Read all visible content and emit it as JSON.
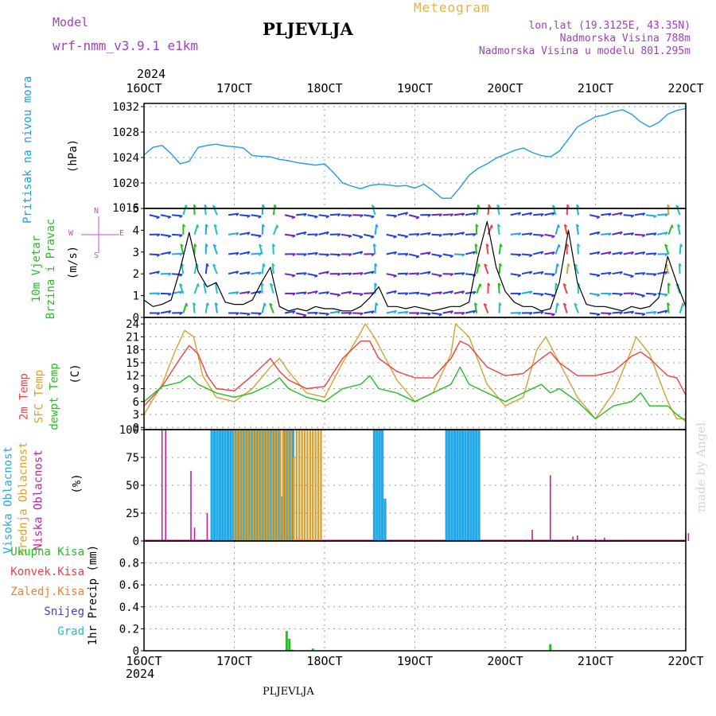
{
  "header": {
    "model_label": "Model",
    "model_name": "wrf-nmm_v3.9.1 e1km",
    "station": "PLJEVLJA",
    "chart_title": "Meteogram",
    "coords": "lon,lat (19.3125E, 43.35N)",
    "elevation": "Nadmorska Visina 788m",
    "model_elevation": "Nadmorska Visina u modelu 801.295m",
    "year_top": "2024",
    "year_bottom": "2024",
    "footer_station": "PLJEVLJA",
    "credit": "made by Angel"
  },
  "colors": {
    "pressure": "#1e9be8",
    "temp2m": "#f04040",
    "sfc": "#d8a030",
    "dew": "#20c020",
    "high_cloud": "#20a8e8",
    "mid_cloud": "#d8a030",
    "low_cloud": "#c020a0",
    "precip_total": "#20c020",
    "precip_conv": "#f04040",
    "precip_frz": "#f08030",
    "precip_snow": "#4040e0",
    "precip_grad": "#20c0c0",
    "wind_label": "#20c020",
    "compass": "#c050d0",
    "credit": "#d0d8d0"
  },
  "chart_data": [
    {
      "panel": "pressure",
      "type": "line",
      "title": "Pritisak na nivou mora",
      "ylabel": "(hPa)",
      "ylim": [
        1016,
        1032.5
      ],
      "yticks": [
        1020,
        1024,
        1028,
        1032
      ],
      "ytick_top_clipped": "1016",
      "grid": true,
      "x_labels": [
        "16OCT",
        "17OCT",
        "18OCT",
        "19OCT",
        "20OCT",
        "21OCT",
        "22OCT"
      ],
      "series": [
        {
          "x": [
            0,
            0.1,
            0.2,
            0.3,
            0.4,
            0.5,
            0.6,
            0.7,
            0.8,
            0.9,
            1,
            1.1,
            1.2,
            1.3,
            1.4,
            1.5,
            1.6,
            1.7,
            1.8,
            1.9,
            2,
            2.1,
            2.2,
            2.3,
            2.4,
            2.5,
            2.6,
            2.7,
            2.8,
            2.9,
            3,
            3.1,
            3.2,
            3.3,
            3.4,
            3.5,
            3.6,
            3.7,
            3.8,
            3.9,
            4,
            4.1,
            4.2,
            4.3,
            4.4,
            4.5,
            4.6,
            4.7,
            4.8,
            4.9,
            5,
            5.1,
            5.2,
            5.3,
            5.4,
            5.5,
            5.6,
            5.7,
            5.8,
            5.9,
            6
          ],
          "y": [
            1024.4,
            1025.6,
            1025.9,
            1024.6,
            1023,
            1023.4,
            1025.6,
            1025.9,
            1026.1,
            1025.8,
            1025.7,
            1025.5,
            1024.3,
            1024.2,
            1024.1,
            1023.7,
            1023.5,
            1023.2,
            1023,
            1022.8,
            1023,
            1021.6,
            1020,
            1019.5,
            1019.1,
            1019.6,
            1019.8,
            1019.7,
            1019.5,
            1019.6,
            1019.2,
            1019.8,
            1018.8,
            1017.6,
            1017.6,
            1019.3,
            1021.2,
            1022.3,
            1023,
            1023.9,
            1024.5,
            1025.1,
            1025.5,
            1024.8,
            1024.3,
            1024.1,
            1025,
            1026.9,
            1028.8,
            1029.6,
            1030.4,
            1030.7,
            1031.2,
            1031.5,
            1030.8,
            1029.6,
            1028.8,
            1029.5,
            1030.8,
            1031.4,
            1031.7
          ]
        }
      ]
    },
    {
      "panel": "wind",
      "type": "line",
      "title": "10m Vjetar Brzina i Pravac",
      "ylabel": "(m/s)",
      "ylim": [
        0,
        5
      ],
      "yticks": [
        0,
        1,
        2,
        3,
        4,
        5
      ],
      "compass": {
        "n": "N",
        "s": "S",
        "e": "E",
        "w": "W"
      },
      "series": [
        {
          "name": "Brzina",
          "x": [
            0,
            0.1,
            0.2,
            0.3,
            0.4,
            0.5,
            0.6,
            0.7,
            0.8,
            0.9,
            1,
            1.1,
            1.2,
            1.3,
            1.4,
            1.5,
            1.6,
            1.7,
            1.8,
            1.9,
            2,
            2.1,
            2.2,
            2.3,
            2.4,
            2.5,
            2.6,
            2.7,
            2.8,
            2.9,
            3,
            3.1,
            3.2,
            3.3,
            3.4,
            3.5,
            3.6,
            3.7,
            3.8,
            3.9,
            4,
            4.1,
            4.2,
            4.3,
            4.4,
            4.5,
            4.6,
            4.7,
            4.8,
            4.9,
            5,
            5.1,
            5.2,
            5.3,
            5.4,
            5.5,
            5.6,
            5.7,
            5.8,
            5.9,
            6
          ],
          "y": [
            0.8,
            0.5,
            0.6,
            0.8,
            2.2,
            3.9,
            2.1,
            1.4,
            1.6,
            0.7,
            0.6,
            0.6,
            0.8,
            1.6,
            2.3,
            0.5,
            0.3,
            0.4,
            0.3,
            0.5,
            0.4,
            0.4,
            0.3,
            0.3,
            0.5,
            0.9,
            1.4,
            0.5,
            0.5,
            0.4,
            0.5,
            0.4,
            0.3,
            0.4,
            0.5,
            0.5,
            0.7,
            2.8,
            4.4,
            2.3,
            1.2,
            0.7,
            0.5,
            0.5,
            0.3,
            0.4,
            1.6,
            4.0,
            1.6,
            0.6,
            0.5,
            0.5,
            0.4,
            0.3,
            0.5,
            0.4,
            0.5,
            0.9,
            2.8,
            1.6,
            0.5
          ]
        }
      ]
    },
    {
      "panel": "temperature",
      "type": "line",
      "ylabel": "(C)",
      "ylim": [
        -0.5,
        25.5
      ],
      "yticks": [
        0,
        3,
        6,
        9,
        12,
        15,
        18,
        21,
        24
      ],
      "grid": true,
      "series": [
        {
          "name": "2m Temp",
          "x": [
            0,
            0.2,
            0.4,
            0.5,
            0.6,
            0.7,
            0.8,
            1,
            1.2,
            1.4,
            1.5,
            1.6,
            1.8,
            2,
            2.2,
            2.4,
            2.5,
            2.6,
            2.8,
            3,
            3.2,
            3.4,
            3.5,
            3.6,
            3.8,
            4,
            4.2,
            4.4,
            4.5,
            4.6,
            4.8,
            5,
            5.2,
            5.4,
            5.5,
            5.6,
            5.8,
            5.9,
            6
          ],
          "y": [
            5,
            9.5,
            16,
            19,
            17,
            12,
            9,
            8.5,
            12,
            16,
            13,
            11,
            9,
            9.5,
            16,
            20,
            20,
            16,
            13,
            11.5,
            11.5,
            16,
            20,
            19,
            14,
            12,
            12.5,
            16,
            17.5,
            15,
            12,
            12,
            13,
            16.5,
            17.5,
            16,
            12,
            11.5,
            7.5
          ]
        },
        {
          "name": "SFC Temp",
          "x": [
            0,
            0.2,
            0.35,
            0.45,
            0.55,
            0.65,
            0.8,
            1,
            1.2,
            1.4,
            1.5,
            1.6,
            1.8,
            2,
            2.2,
            2.4,
            2.45,
            2.55,
            2.8,
            3,
            3.2,
            3.4,
            3.45,
            3.6,
            3.8,
            4,
            4.2,
            4.35,
            4.45,
            4.55,
            4.8,
            5,
            5.2,
            5.4,
            5.45,
            5.6,
            5.8,
            5.9,
            6
          ],
          "y": [
            3,
            10,
            18,
            22.5,
            21,
            12,
            7,
            6,
            9,
            14,
            16,
            13,
            8,
            7,
            15,
            22,
            24,
            21,
            11,
            6,
            8,
            17,
            24,
            21,
            10,
            5,
            7,
            18,
            21,
            17,
            7,
            2,
            8,
            18,
            21,
            17,
            6,
            2,
            2
          ]
        },
        {
          "name": "dewpt Temp",
          "x": [
            0,
            0.2,
            0.4,
            0.5,
            0.6,
            0.8,
            1,
            1.2,
            1.4,
            1.5,
            1.6,
            1.8,
            2,
            2.2,
            2.4,
            2.5,
            2.6,
            2.8,
            3,
            3.2,
            3.4,
            3.5,
            3.6,
            3.8,
            4,
            4.2,
            4.4,
            4.5,
            4.6,
            4.8,
            5,
            5.2,
            5.4,
            5.5,
            5.6,
            5.8,
            5.9,
            6
          ],
          "y": [
            6,
            9.5,
            10.5,
            12,
            10,
            8,
            7,
            8,
            10,
            11.5,
            9,
            7,
            6,
            9,
            10,
            12,
            9,
            8,
            6,
            8,
            10,
            14,
            10,
            8,
            6,
            8,
            10,
            8,
            9,
            6,
            2,
            5,
            6,
            8,
            5,
            5,
            3,
            1.5
          ]
        }
      ]
    },
    {
      "panel": "clouds",
      "type": "bar",
      "ylabel": "(%)",
      "ylim": [
        0,
        100
      ],
      "yticks": [
        0,
        25,
        50,
        75,
        100
      ],
      "grid": true,
      "series": [
        {
          "name": "Visoka Oblacnost",
          "x": [
            0.75,
            0.78,
            0.81,
            0.84,
            0.87,
            0.9,
            0.93,
            0.96,
            0.99,
            1.02,
            1.05,
            1.08,
            1.11,
            1.14,
            1.17,
            1.2,
            1.23,
            1.26,
            1.29,
            1.32,
            1.35,
            1.38,
            1.41,
            1.44,
            1.47,
            1.5,
            1.53,
            1.56,
            1.59,
            1.62,
            1.65,
            2.55,
            2.58,
            2.61,
            2.64,
            2.67,
            3.35,
            3.38,
            3.41,
            3.44,
            3.47,
            3.5,
            3.53,
            3.56,
            3.59,
            3.62,
            3.65,
            3.68,
            3.71
          ],
          "y": [
            100,
            100,
            100,
            100,
            100,
            100,
            100,
            100,
            100,
            100,
            100,
            100,
            100,
            100,
            100,
            100,
            100,
            100,
            100,
            100,
            100,
            100,
            100,
            100,
            100,
            100,
            40,
            100,
            100,
            100,
            100,
            100,
            100,
            100,
            100,
            38,
            100,
            100,
            100,
            100,
            100,
            100,
            100,
            100,
            100,
            100,
            100,
            100,
            100
          ]
        },
        {
          "name": "Srednja Oblacnost",
          "x": [
            1.0,
            1.03,
            1.06,
            1.09,
            1.12,
            1.15,
            1.18,
            1.21,
            1.24,
            1.27,
            1.3,
            1.33,
            1.36,
            1.39,
            1.42,
            1.45,
            1.48,
            1.51,
            1.54,
            1.57,
            1.6,
            1.63,
            1.66,
            1.69,
            1.72,
            1.75,
            1.78,
            1.81,
            1.84,
            1.87,
            1.9,
            1.93,
            1.96
          ],
          "y": [
            100,
            100,
            100,
            100,
            100,
            100,
            100,
            100,
            100,
            100,
            100,
            100,
            100,
            100,
            100,
            100,
            100,
            100,
            100,
            100,
            100,
            100,
            75,
            100,
            100,
            100,
            100,
            100,
            100,
            100,
            100,
            100,
            100
          ]
        },
        {
          "name": "Niska Oblacnost",
          "x": [
            0.2,
            0.24,
            0.52,
            0.56,
            0.7,
            4.3,
            4.5,
            4.75,
            4.8,
            5.0,
            5.1,
            6.0,
            6.03
          ],
          "y": [
            100,
            100,
            63,
            12,
            25,
            10,
            59,
            4,
            5,
            2,
            3,
            7,
            7
          ]
        }
      ]
    },
    {
      "panel": "precip",
      "type": "bar",
      "ylabel": "1hr Precip (mm)",
      "ylim": [
        0,
        1
      ],
      "yticks": [
        0,
        0.2,
        0.4,
        0.6,
        0.8
      ],
      "grid": true,
      "legend": [
        "Ukupna Kisa",
        "Konvek.Kisa",
        "Zaledj.Kisa",
        "Snijeg",
        "Grad"
      ],
      "series": [
        {
          "name": "Ukupna Kisa",
          "x": [
            1.58,
            1.61,
            1.64,
            1.87,
            4.5
          ],
          "y": [
            0.18,
            0.11,
            0.01,
            0.02,
            0.06
          ]
        }
      ]
    }
  ]
}
